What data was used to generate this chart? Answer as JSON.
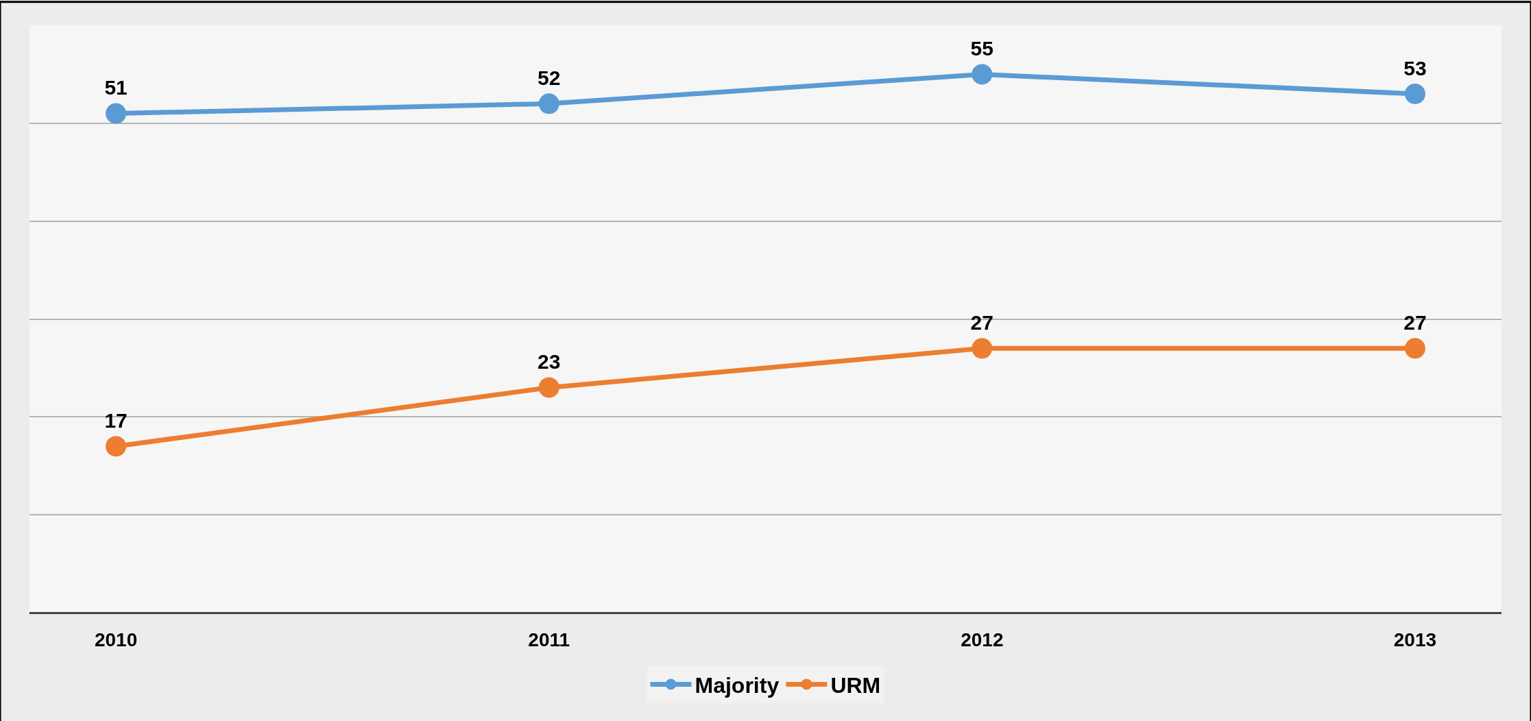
{
  "chart_data": {
    "type": "line",
    "categories": [
      "2010",
      "2011",
      "2012",
      "2013"
    ],
    "series": [
      {
        "name": "Majority",
        "color": "#5b9bd5",
        "values": [
          51,
          52,
          55,
          53
        ]
      },
      {
        "name": "URM",
        "color": "#ed7d31",
        "values": [
          17,
          23,
          27,
          27
        ]
      }
    ],
    "ylim": [
      0,
      60
    ],
    "yticks": [
      {
        "value": 0,
        "label": null
      },
      {
        "value": 10,
        "label": null
      },
      {
        "value": 20,
        "label": null
      },
      {
        "value": 30,
        "label": null
      },
      {
        "value": 40,
        "label": null
      },
      {
        "value": 50,
        "label": null
      },
      {
        "value": 60,
        "label": null
      }
    ],
    "tick_labels": "x",
    "grid": "y",
    "legend": "bottom",
    "marker": "circle",
    "line_style": "solid",
    "data_labels": true
  }
}
